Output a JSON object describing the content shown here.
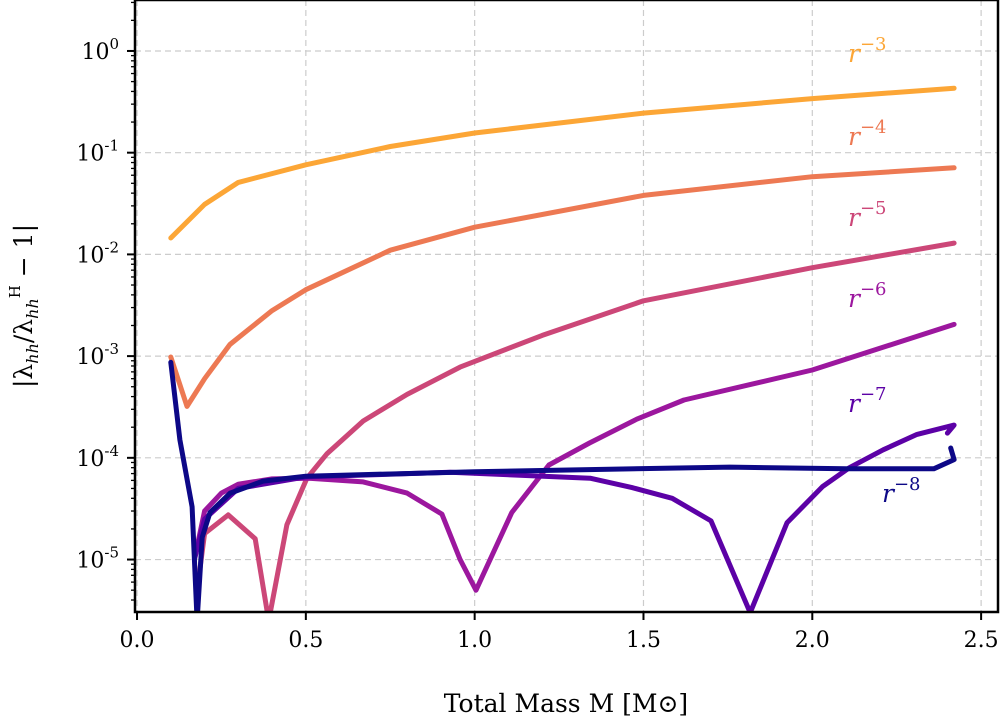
{
  "chart_data": {
    "type": "line",
    "title": "",
    "xlabel": "Total Mass M [M⊙]",
    "ylabel": "|λhh/λhhH − 1|",
    "xlim": [
      -0.006,
      2.55
    ],
    "ylim": [
      3.05e-06,
      3.17
    ],
    "yscale": "log",
    "grid": true,
    "xticks": [
      0.0,
      0.5,
      1.0,
      1.5,
      2.0,
      2.5
    ],
    "xtick_labels": [
      "0.0",
      "0.5",
      "1.0",
      "1.5",
      "2.0",
      "2.5"
    ],
    "yticks": [
      1e-05,
      0.0001,
      0.001,
      0.01,
      0.1,
      1
    ],
    "ytick_labels": [
      {
        "base": "10",
        "exp": "-5"
      },
      {
        "base": "10",
        "exp": "-4"
      },
      {
        "base": "10",
        "exp": "-3"
      },
      {
        "base": "10",
        "exp": "-2"
      },
      {
        "base": "10",
        "exp": "-1"
      },
      {
        "base": "10",
        "exp": "0"
      }
    ],
    "series": [
      {
        "name": "r^-3",
        "label_base": "r",
        "label_exp": "−3",
        "color": "#fca636",
        "x": [
          0.1,
          0.2,
          0.3,
          0.5,
          0.75,
          1.0,
          1.5,
          2.0,
          2.42
        ],
        "y": [
          0.0145,
          0.031,
          0.051,
          0.076,
          0.115,
          0.156,
          0.245,
          0.34,
          0.43
        ]
      },
      {
        "name": "r^-4",
        "label_base": "r",
        "label_exp": "−4",
        "color": "#ed7953",
        "x": [
          0.1,
          0.148,
          0.2,
          0.275,
          0.4,
          0.5,
          0.75,
          1.0,
          1.5,
          2.0,
          2.42
        ],
        "y": [
          0.00098,
          0.00032,
          0.0006,
          0.0013,
          0.0028,
          0.0045,
          0.011,
          0.0185,
          0.038,
          0.058,
          0.071
        ]
      },
      {
        "name": "r^-5",
        "label_base": "r",
        "label_exp": "−5",
        "color": "#cc4778",
        "x": [
          0.178,
          0.2,
          0.27,
          0.35,
          0.39,
          0.444,
          0.503,
          0.563,
          0.67,
          0.8,
          0.957,
          1.2,
          1.5,
          2.0,
          2.42
        ],
        "y": [
          5e-06,
          1.8e-05,
          2.75e-05,
          1.6e-05,
          2.5e-06,
          2.2e-05,
          6.3e-05,
          0.00011,
          0.00023,
          0.00042,
          0.00078,
          0.0016,
          0.0035,
          0.0074,
          0.0129
        ]
      },
      {
        "name": "r^-6",
        "label_base": "r",
        "label_exp": "−6",
        "color": "#9c179e",
        "x": [
          0.17,
          0.2,
          0.25,
          0.3,
          0.4,
          0.51,
          0.67,
          0.8,
          0.903,
          0.957,
          1.004,
          1.11,
          1.22,
          1.34,
          1.48,
          1.62,
          2.0,
          2.42
        ],
        "y": [
          1e-05,
          3e-05,
          4.5e-05,
          5.5e-05,
          6.2e-05,
          6.3e-05,
          5.8e-05,
          4.5e-05,
          2.8e-05,
          1e-05,
          5e-06,
          2.9e-05,
          8.5e-05,
          0.00014,
          0.00024,
          0.00037,
          0.00073,
          0.00205
        ]
      },
      {
        "name": "r^-7",
        "label_base": "r",
        "label_exp": "−7",
        "color": "#5c01a6",
        "x": [
          0.17,
          0.2,
          0.3,
          0.5,
          0.927,
          1.342,
          1.466,
          1.585,
          1.7,
          1.816,
          1.925,
          2.03,
          2.11,
          2.21,
          2.31,
          2.42,
          2.4
        ],
        "y": [
          1e-05,
          2.5e-05,
          5e-05,
          6.5e-05,
          7.2e-05,
          6.3e-05,
          5.1e-05,
          4e-05,
          2.4e-05,
          3e-06,
          2.3e-05,
          5.2e-05,
          8e-05,
          0.00012,
          0.00017,
          0.00021,
          0.000175
        ]
      },
      {
        "name": "r^-8",
        "label_base": "r",
        "label_exp": "−8",
        "color": "#0d0887",
        "x": [
          0.1,
          0.127,
          0.163,
          0.178,
          0.193,
          0.216,
          0.276,
          0.373,
          0.5,
          1.0,
          1.756,
          2.1,
          2.36,
          2.42,
          2.41
        ],
        "y": [
          0.00087,
          0.00015,
          3.3e-05,
          2.5e-06,
          1.65e-05,
          2.9e-05,
          4.5e-05,
          5.9e-05,
          6.6e-05,
          7.3e-05,
          8.1e-05,
          7.8e-05,
          7.8e-05,
          9.6e-05,
          0.000125
        ]
      }
    ]
  }
}
